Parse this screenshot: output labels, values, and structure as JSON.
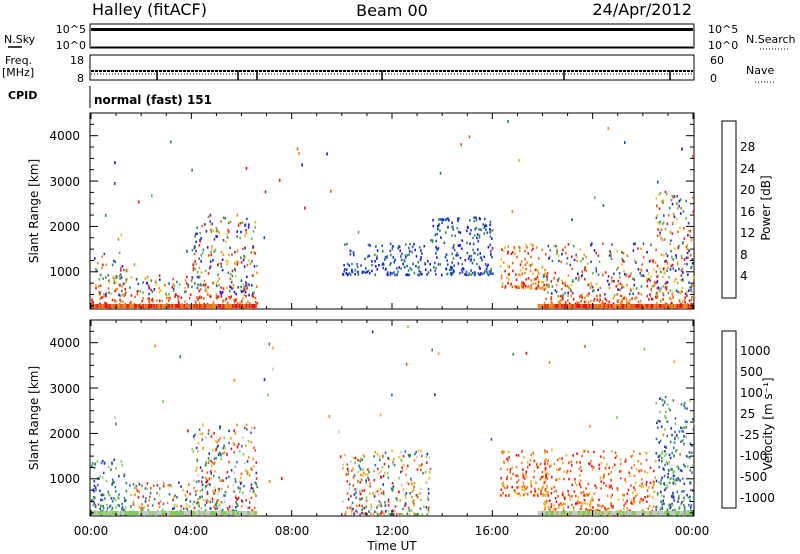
{
  "header": {
    "station": "Halley (fitACF)",
    "beam": "Beam 00",
    "date": "24/Apr/2012"
  },
  "panels": {
    "nsky": {
      "label": "N.Sky",
      "ticks": [
        "10^5",
        "10^0"
      ]
    },
    "nsearch": {
      "label": "N.Search",
      "ticks": [
        "10^5",
        "10^0"
      ]
    },
    "freq": {
      "label_line1": "Freq.",
      "label_line2": "[MHz]",
      "ticks": [
        "18",
        "8"
      ]
    },
    "nave": {
      "label": "Nave",
      "ticks": [
        "60",
        "0"
      ]
    },
    "cpid": {
      "label": "CPID",
      "value": "normal (fast) 151"
    }
  },
  "colors": {
    "power": [
      "#1414e6",
      "#1e4fb4",
      "#2e8b57",
      "#66b266",
      "#e6c21a",
      "#f08c14",
      "#f05a14",
      "#e61414"
    ],
    "velocity": [
      "#2430b0",
      "#2e6eb4",
      "#2e8b57",
      "#7fcf4f",
      "#c8c8c8",
      "#f0b41e",
      "#f08c14",
      "#f05014",
      "#e61414"
    ]
  },
  "chart_data": [
    {
      "type": "heatmap",
      "title": "",
      "xlabel": "",
      "ylabel": "Slant Range [km]",
      "x_ticks": [
        "00:00",
        "04:00",
        "08:00",
        "12:00",
        "16:00",
        "20:00",
        "00:00"
      ],
      "y_ticks": [
        "1000",
        "2000",
        "3000",
        "4000"
      ],
      "xlim_hours": [
        0,
        24
      ],
      "ylim_km": [
        180,
        4500
      ],
      "colorbar": {
        "label": "Power [dB]",
        "ticks": [
          "4",
          "8",
          "12",
          "16",
          "20",
          "24",
          "28"
        ],
        "range": [
          0,
          32
        ]
      },
      "regions": [
        {
          "t": [
            0.0,
            1.4
          ],
          "r": [
            180,
            1400
          ],
          "level": "mixed"
        },
        {
          "t": [
            1.5,
            4.0
          ],
          "r": [
            180,
            900
          ],
          "level": "mixed"
        },
        {
          "t": [
            4.0,
            6.6
          ],
          "r": [
            180,
            2200
          ],
          "level": "mixed"
        },
        {
          "t": [
            10.0,
            13.5
          ],
          "r": [
            900,
            1600
          ],
          "level": "low"
        },
        {
          "t": [
            13.5,
            16.0
          ],
          "r": [
            900,
            2200
          ],
          "level": "low"
        },
        {
          "t": [
            16.3,
            18.2
          ],
          "r": [
            600,
            1600
          ],
          "level": "high"
        },
        {
          "t": [
            18.0,
            22.5
          ],
          "r": [
            180,
            1600
          ],
          "level": "mixed"
        },
        {
          "t": [
            22.5,
            24.0
          ],
          "r": [
            180,
            2800
          ],
          "level": "mixed"
        }
      ]
    },
    {
      "type": "heatmap",
      "title": "",
      "xlabel": "Time UT",
      "ylabel": "Slant Range [km]",
      "x_ticks": [
        "00:00",
        "04:00",
        "08:00",
        "12:00",
        "16:00",
        "20:00",
        "00:00"
      ],
      "y_ticks": [
        "1000",
        "2000",
        "3000",
        "4000"
      ],
      "xlim_hours": [
        0,
        24
      ],
      "ylim_km": [
        180,
        4500
      ],
      "colorbar": {
        "label": "Velocity [m s⁻¹]",
        "ticks": [
          "1000",
          "500",
          "100",
          "25",
          "-25",
          "-100",
          "-500",
          "-1000"
        ]
      },
      "regions": [
        {
          "t": [
            0.0,
            1.4
          ],
          "r": [
            180,
            1400
          ],
          "sign": "positive"
        },
        {
          "t": [
            1.5,
            4.0
          ],
          "r": [
            180,
            900
          ],
          "sign": "mixed"
        },
        {
          "t": [
            4.0,
            6.6
          ],
          "r": [
            180,
            2200
          ],
          "sign": "mixed"
        },
        {
          "t": [
            10.0,
            13.5
          ],
          "r": [
            180,
            1600
          ],
          "sign": "mixed"
        },
        {
          "t": [
            16.3,
            18.2
          ],
          "r": [
            600,
            1600
          ],
          "sign": "negative"
        },
        {
          "t": [
            18.0,
            22.5
          ],
          "r": [
            180,
            1600
          ],
          "sign": "negative"
        },
        {
          "t": [
            22.5,
            24.0
          ],
          "r": [
            180,
            2800
          ],
          "sign": "positive"
        }
      ]
    }
  ]
}
